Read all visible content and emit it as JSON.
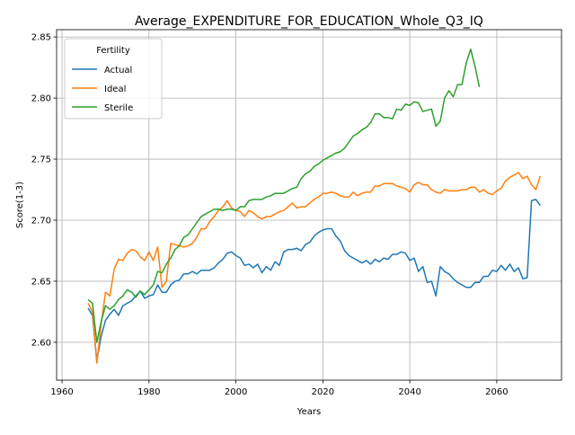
{
  "chart_data": {
    "type": "line",
    "title": "Average_EXPENDITURE_FOR_EDUCATION_Whole_Q3_IQ",
    "x_label": "Years",
    "y_label": "Score(1-3)",
    "legend_title": "Fertility",
    "legend_position": "upper left",
    "grid": true,
    "xlim": [
      1958.75,
      2074.9
    ],
    "ylim": [
      2.569,
      2.856
    ],
    "xticks": [
      1960,
      1980,
      2000,
      2020,
      2040,
      2060
    ],
    "yticks": [
      {
        "value": 2.6,
        "label": "2.60"
      },
      2.65,
      {
        "value": 2.7,
        "label": "2.70"
      },
      2.75,
      {
        "value": 2.8,
        "label": "2.80"
      },
      2.85
    ],
    "x": [
      1966,
      1967,
      1968,
      1969,
      1970,
      1971,
      1972,
      1973,
      1974,
      1975,
      1976,
      1977,
      1978,
      1979,
      1980,
      1981,
      1982,
      1983,
      1984,
      1985,
      1986,
      1987,
      1988,
      1989,
      1990,
      1991,
      1992,
      1993,
      1994,
      1995,
      1996,
      1997,
      1998,
      1999,
      2000,
      2001,
      2002,
      2003,
      2004,
      2005,
      2006,
      2007,
      2008,
      2009,
      2010,
      2011,
      2012,
      2013,
      2014,
      2015,
      2016,
      2017,
      2018,
      2019,
      2020,
      2021,
      2022,
      2023,
      2024,
      2025,
      2026,
      2027,
      2028,
      2029,
      2030,
      2031,
      2032,
      2033,
      2034,
      2035,
      2036,
      2037,
      2038,
      2039,
      2040,
      2041,
      2042,
      2043,
      2044,
      2045,
      2046,
      2047,
      2048,
      2049,
      2050,
      2051,
      2052,
      2053,
      2054,
      2055,
      2056,
      2057,
      2058,
      2059,
      2060,
      2061,
      2062,
      2063,
      2064,
      2065,
      2066,
      2067,
      2068,
      2069,
      2070
    ],
    "series": [
      {
        "name": "Actual",
        "color": "#1f77b4",
        "values": [
          2.628,
          2.622,
          2.585,
          2.605,
          2.618,
          2.623,
          2.627,
          2.622,
          2.63,
          2.632,
          2.634,
          2.638,
          2.642,
          2.636,
          2.638,
          2.639,
          2.647,
          2.641,
          2.641,
          2.647,
          2.65,
          2.651,
          2.656,
          2.656,
          2.658,
          2.656,
          2.659,
          2.659,
          2.659,
          2.661,
          2.665,
          2.668,
          2.673,
          2.674,
          2.671,
          2.669,
          2.663,
          2.664,
          2.661,
          2.664,
          2.657,
          2.662,
          2.659,
          2.666,
          2.663,
          2.674,
          2.676,
          2.676,
          2.677,
          2.675,
          2.68,
          2.682,
          2.687,
          2.69,
          2.692,
          2.693,
          2.693,
          2.687,
          2.683,
          2.675,
          2.671,
          2.669,
          2.667,
          2.665,
          2.667,
          2.664,
          2.668,
          2.666,
          2.669,
          2.668,
          2.672,
          2.672,
          2.674,
          2.673,
          2.667,
          2.669,
          2.658,
          2.662,
          2.649,
          2.65,
          2.638,
          2.662,
          2.658,
          2.656,
          2.652,
          2.649,
          2.647,
          2.645,
          2.645,
          2.649,
          2.649,
          2.654,
          2.654,
          2.659,
          2.658,
          2.663,
          2.659,
          2.664,
          2.658,
          2.661,
          2.652,
          2.653,
          2.716,
          2.717,
          2.712
        ]
      },
      {
        "name": "Ideal",
        "color": "#ff7f0e",
        "values": [
          2.632,
          2.625,
          2.583,
          2.615,
          2.641,
          2.638,
          2.66,
          2.668,
          2.667,
          2.673,
          2.676,
          2.675,
          2.67,
          2.667,
          2.674,
          2.667,
          2.678,
          2.645,
          2.65,
          2.681,
          2.68,
          2.679,
          2.678,
          2.679,
          2.681,
          2.686,
          2.693,
          2.693,
          2.699,
          2.703,
          2.708,
          2.711,
          2.716,
          2.71,
          2.708,
          2.707,
          2.703,
          2.708,
          2.706,
          2.703,
          2.701,
          2.703,
          2.703,
          2.705,
          2.707,
          2.708,
          2.711,
          2.714,
          2.71,
          2.711,
          2.711,
          2.714,
          2.717,
          2.719,
          2.722,
          2.722,
          2.723,
          2.722,
          2.72,
          2.719,
          2.719,
          2.723,
          2.72,
          2.722,
          2.723,
          2.723,
          2.728,
          2.728,
          2.73,
          2.73,
          2.73,
          2.728,
          2.727,
          2.726,
          2.723,
          2.729,
          2.731,
          2.729,
          2.729,
          2.725,
          2.723,
          2.722,
          2.725,
          2.724,
          2.724,
          2.724,
          2.725,
          2.725,
          2.727,
          2.727,
          2.723,
          2.725,
          2.722,
          2.721,
          2.724,
          2.726,
          2.732,
          2.735,
          2.737,
          2.739,
          2.734,
          2.736,
          2.729,
          2.725,
          2.736
        ]
      },
      {
        "name": "Sterile",
        "color": "#2ca02c",
        "values": [
          2.635,
          2.632,
          2.6,
          2.617,
          2.63,
          2.627,
          2.63,
          2.635,
          2.638,
          2.643,
          2.641,
          2.637,
          2.642,
          2.639,
          2.643,
          2.647,
          2.658,
          2.657,
          2.664,
          2.669,
          2.676,
          2.679,
          2.686,
          2.688,
          2.693,
          2.698,
          2.703,
          2.705,
          2.707,
          2.709,
          2.709,
          2.708,
          2.709,
          2.709,
          2.708,
          2.711,
          2.711,
          2.716,
          2.717,
          2.717,
          2.717,
          2.719,
          2.72,
          2.722,
          2.722,
          2.722,
          2.724,
          2.726,
          2.727,
          2.734,
          2.738,
          2.74,
          2.744,
          2.746,
          2.749,
          2.751,
          2.753,
          2.755,
          2.756,
          2.759,
          2.764,
          2.769,
          2.771,
          2.774,
          2.776,
          2.78,
          2.787,
          2.787,
          2.784,
          2.784,
          2.783,
          2.791,
          2.79,
          2.795,
          2.794,
          2.797,
          2.796,
          2.789,
          2.79,
          2.791,
          2.777,
          2.781,
          2.8,
          2.806,
          2.801,
          2.811,
          2.811,
          2.829,
          2.84,
          2.826,
          2.809,
          null,
          null,
          null,
          null,
          null,
          null,
          null,
          null,
          null,
          null,
          null,
          null,
          null,
          null
        ]
      }
    ]
  }
}
